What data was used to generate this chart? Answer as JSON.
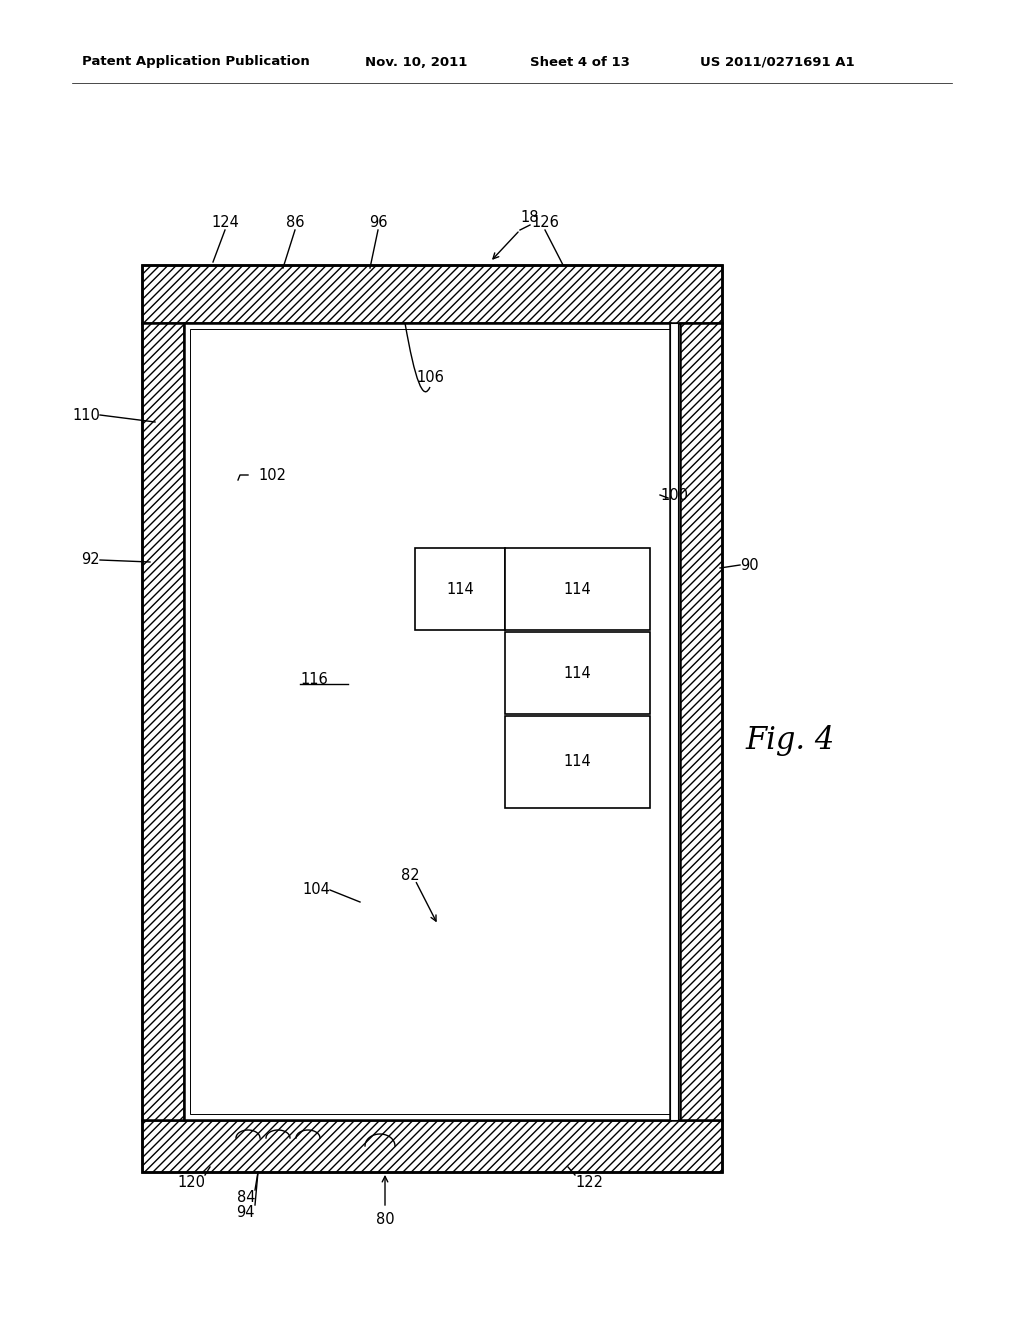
{
  "bg_color": "#ffffff",
  "header_text": "Patent Application Publication",
  "header_date": "Nov. 10, 2011",
  "header_sheet": "Sheet 4 of 13",
  "header_patent": "US 2011/0271691 A1",
  "fig_label": "Fig. 4",
  "lw_heavy": 1.8,
  "lw_medium": 1.2,
  "lw_light": 0.8
}
